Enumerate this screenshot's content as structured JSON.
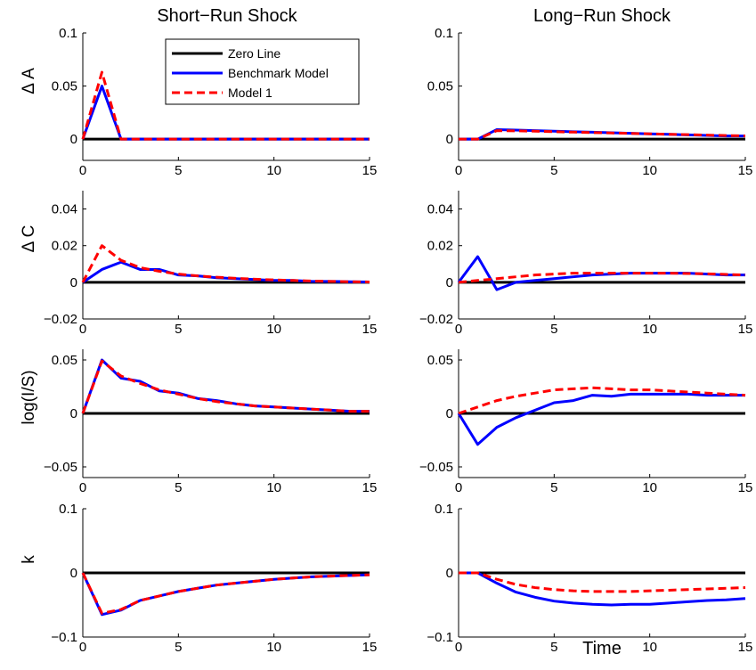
{
  "figure": {
    "column_titles": [
      "Short−Run Shock",
      "Long−Run Shock"
    ],
    "row_labels": [
      "Δ A",
      "Δ C",
      "log(I/S)",
      "k"
    ],
    "xlabel": "Time"
  },
  "legend": {
    "placement": "top-right of first panel",
    "items": [
      {
        "label": "Zero Line",
        "color": "#000000",
        "style": "solid"
      },
      {
        "label": "Benchmark Model",
        "color": "#0000ff",
        "style": "solid"
      },
      {
        "label": "Model 1",
        "color": "#ff0000",
        "style": "dashed"
      }
    ]
  },
  "colors": {
    "zero": "#000000",
    "benchmark": "#0000ff",
    "model1": "#ff0000"
  },
  "chart_data": [
    {
      "type": "line",
      "row": 0,
      "col": 0,
      "title": "Short−Run Shock",
      "ylabel": "Δ A",
      "xlim": [
        0,
        15
      ],
      "ylim": [
        -0.02,
        0.1
      ],
      "xticks": [
        0,
        5,
        10,
        15
      ],
      "xtick_labels": [
        "0",
        "5",
        "10",
        "15"
      ],
      "yticks": [
        0,
        0.05,
        0.1
      ],
      "ytick_labels": [
        "0",
        "0.05",
        "0.1"
      ],
      "x": [
        0,
        1,
        2,
        3,
        4,
        5,
        6,
        7,
        8,
        9,
        10,
        11,
        12,
        13,
        14,
        15
      ],
      "series": [
        {
          "name": "Benchmark Model",
          "values": [
            0,
            0.05,
            0,
            0,
            0,
            0,
            0,
            0,
            0,
            0,
            0,
            0,
            0,
            0,
            0,
            0
          ]
        },
        {
          "name": "Model 1",
          "values": [
            0,
            0.063,
            0,
            0,
            0,
            0,
            0,
            0,
            0,
            0,
            0,
            0,
            0,
            0,
            0,
            0
          ]
        }
      ]
    },
    {
      "type": "line",
      "row": 0,
      "col": 1,
      "title": "Long−Run Shock",
      "ylabel": "",
      "xlim": [
        0,
        15
      ],
      "ylim": [
        -0.02,
        0.1
      ],
      "xticks": [
        0,
        5,
        10,
        15
      ],
      "xtick_labels": [
        "0",
        "5",
        "10",
        "15"
      ],
      "yticks": [
        0,
        0.05,
        0.1
      ],
      "ytick_labels": [
        "0",
        "0.05",
        "0.1"
      ],
      "x": [
        0,
        1,
        2,
        3,
        4,
        5,
        6,
        7,
        8,
        9,
        10,
        11,
        12,
        13,
        14,
        15
      ],
      "series": [
        {
          "name": "Benchmark Model",
          "values": [
            0,
            0,
            0.009,
            0.0085,
            0.008,
            0.0075,
            0.007,
            0.0065,
            0.006,
            0.0055,
            0.005,
            0.0045,
            0.004,
            0.0035,
            0.003,
            0.003
          ]
        },
        {
          "name": "Model 1",
          "values": [
            0,
            0,
            0.008,
            0.0078,
            0.0075,
            0.007,
            0.0066,
            0.0062,
            0.0058,
            0.0054,
            0.005,
            0.0046,
            0.0042,
            0.0038,
            0.0034,
            0.003
          ]
        }
      ]
    },
    {
      "type": "line",
      "row": 1,
      "col": 0,
      "title": "",
      "ylabel": "Δ C",
      "xlim": [
        0,
        15
      ],
      "ylim": [
        -0.02,
        0.05
      ],
      "xticks": [
        0,
        5,
        10,
        15
      ],
      "xtick_labels": [
        "0",
        "5",
        "10",
        "15"
      ],
      "yticks": [
        -0.02,
        0,
        0.02,
        0.04
      ],
      "ytick_labels": [
        "−0.02",
        "0",
        "0.02",
        "0.04"
      ],
      "x": [
        0,
        1,
        2,
        3,
        4,
        5,
        6,
        7,
        8,
        9,
        10,
        11,
        12,
        13,
        14,
        15
      ],
      "series": [
        {
          "name": "Benchmark Model",
          "values": [
            0,
            0.007,
            0.011,
            0.007,
            0.007,
            0.004,
            0.0035,
            0.0025,
            0.002,
            0.0015,
            0.001,
            0.001,
            0.0005,
            0.0005,
            0.0003,
            0.0002
          ]
        },
        {
          "name": "Model 1",
          "values": [
            0,
            0.02,
            0.012,
            0.008,
            0.006,
            0.0045,
            0.0035,
            0.0028,
            0.0022,
            0.0017,
            0.0013,
            0.001,
            0.0007,
            0.0005,
            0.0003,
            0.0002
          ]
        }
      ]
    },
    {
      "type": "line",
      "row": 1,
      "col": 1,
      "title": "",
      "ylabel": "",
      "xlim": [
        0,
        15
      ],
      "ylim": [
        -0.02,
        0.05
      ],
      "xticks": [
        0,
        5,
        10,
        15
      ],
      "xtick_labels": [
        "0",
        "5",
        "10",
        "15"
      ],
      "yticks": [
        -0.02,
        0,
        0.02,
        0.04
      ],
      "ytick_labels": [
        "−0.02",
        "0",
        "0.02",
        "0.04"
      ],
      "x": [
        0,
        1,
        2,
        3,
        4,
        5,
        6,
        7,
        8,
        9,
        10,
        11,
        12,
        13,
        14,
        15
      ],
      "series": [
        {
          "name": "Benchmark Model",
          "values": [
            0,
            0.014,
            -0.004,
            0,
            0.001,
            0.002,
            0.003,
            0.004,
            0.0045,
            0.005,
            0.005,
            0.005,
            0.005,
            0.0045,
            0.004,
            0.004
          ]
        },
        {
          "name": "Model 1",
          "values": [
            0,
            0.001,
            0.002,
            0.003,
            0.004,
            0.0045,
            0.005,
            0.005,
            0.005,
            0.005,
            0.005,
            0.005,
            0.0048,
            0.0046,
            0.0043,
            0.004
          ]
        }
      ]
    },
    {
      "type": "line",
      "row": 2,
      "col": 0,
      "title": "",
      "ylabel": "log(I/S)",
      "xlim": [
        0,
        15
      ],
      "ylim": [
        -0.06,
        0.06
      ],
      "xticks": [
        0,
        5,
        10,
        15
      ],
      "xtick_labels": [
        "0",
        "5",
        "10",
        "15"
      ],
      "yticks": [
        -0.05,
        0,
        0.05
      ],
      "ytick_labels": [
        "−0.05",
        "0",
        "0.05"
      ],
      "x": [
        0,
        1,
        2,
        3,
        4,
        5,
        6,
        7,
        8,
        9,
        10,
        11,
        12,
        13,
        14,
        15
      ],
      "series": [
        {
          "name": "Benchmark Model",
          "values": [
            0,
            0.05,
            0.033,
            0.03,
            0.021,
            0.019,
            0.014,
            0.012,
            0.009,
            0.007,
            0.006,
            0.005,
            0.004,
            0.003,
            0.002,
            0.002
          ]
        },
        {
          "name": "Model 1",
          "values": [
            0,
            0.049,
            0.035,
            0.028,
            0.022,
            0.018,
            0.014,
            0.011,
            0.009,
            0.007,
            0.006,
            0.005,
            0.004,
            0.003,
            0.002,
            0.002
          ]
        }
      ]
    },
    {
      "type": "line",
      "row": 2,
      "col": 1,
      "title": "",
      "ylabel": "",
      "xlim": [
        0,
        15
      ],
      "ylim": [
        -0.06,
        0.06
      ],
      "xticks": [
        0,
        5,
        10,
        15
      ],
      "xtick_labels": [
        "0",
        "5",
        "10",
        "15"
      ],
      "yticks": [
        -0.05,
        0,
        0.05
      ],
      "ytick_labels": [
        "−0.05",
        "0",
        "0.05"
      ],
      "x": [
        0,
        1,
        2,
        3,
        4,
        5,
        6,
        7,
        8,
        9,
        10,
        11,
        12,
        13,
        14,
        15
      ],
      "series": [
        {
          "name": "Benchmark Model",
          "values": [
            0,
            -0.029,
            -0.013,
            -0.004,
            0.003,
            0.01,
            0.012,
            0.017,
            0.016,
            0.018,
            0.018,
            0.018,
            0.018,
            0.017,
            0.017,
            0.017
          ]
        },
        {
          "name": "Model 1",
          "values": [
            0,
            0.006,
            0.012,
            0.016,
            0.019,
            0.022,
            0.023,
            0.024,
            0.023,
            0.022,
            0.022,
            0.021,
            0.02,
            0.019,
            0.018,
            0.017
          ]
        }
      ]
    },
    {
      "type": "line",
      "row": 3,
      "col": 0,
      "title": "",
      "ylabel": "k",
      "xlim": [
        0,
        15
      ],
      "ylim": [
        -0.1,
        0.1
      ],
      "xticks": [
        0,
        5,
        10,
        15
      ],
      "xtick_labels": [
        "0",
        "5",
        "10",
        "15"
      ],
      "yticks": [
        -0.1,
        0,
        0.1
      ],
      "ytick_labels": [
        "−0.1",
        "0",
        "0.1"
      ],
      "x": [
        0,
        1,
        2,
        3,
        4,
        5,
        6,
        7,
        8,
        9,
        10,
        11,
        12,
        13,
        14,
        15
      ],
      "series": [
        {
          "name": "Benchmark Model",
          "values": [
            0,
            -0.065,
            -0.058,
            -0.043,
            -0.036,
            -0.029,
            -0.024,
            -0.019,
            -0.016,
            -0.013,
            -0.01,
            -0.008,
            -0.006,
            -0.005,
            -0.004,
            -0.003
          ]
        },
        {
          "name": "Model 1",
          "values": [
            0,
            -0.063,
            -0.057,
            -0.043,
            -0.036,
            -0.029,
            -0.024,
            -0.019,
            -0.016,
            -0.013,
            -0.01,
            -0.008,
            -0.006,
            -0.005,
            -0.004,
            -0.003
          ]
        }
      ]
    },
    {
      "type": "line",
      "row": 3,
      "col": 1,
      "title": "",
      "ylabel": "",
      "xlim": [
        0,
        15
      ],
      "ylim": [
        -0.1,
        0.1
      ],
      "xticks": [
        0,
        5,
        10,
        15
      ],
      "xtick_labels": [
        "0",
        "5",
        "10",
        "15"
      ],
      "yticks": [
        -0.1,
        0,
        0.1
      ],
      "ytick_labels": [
        "−0.1",
        "0",
        "0.1"
      ],
      "x": [
        0,
        1,
        2,
        3,
        4,
        5,
        6,
        7,
        8,
        9,
        10,
        11,
        12,
        13,
        14,
        15
      ],
      "series": [
        {
          "name": "Benchmark Model",
          "values": [
            0,
            0,
            -0.016,
            -0.03,
            -0.038,
            -0.044,
            -0.047,
            -0.049,
            -0.05,
            -0.049,
            -0.049,
            -0.047,
            -0.045,
            -0.043,
            -0.042,
            -0.04
          ]
        },
        {
          "name": "Model 1",
          "values": [
            0,
            0,
            -0.01,
            -0.018,
            -0.023,
            -0.026,
            -0.028,
            -0.029,
            -0.029,
            -0.029,
            -0.028,
            -0.027,
            -0.026,
            -0.025,
            -0.024,
            -0.023
          ]
        }
      ]
    }
  ]
}
